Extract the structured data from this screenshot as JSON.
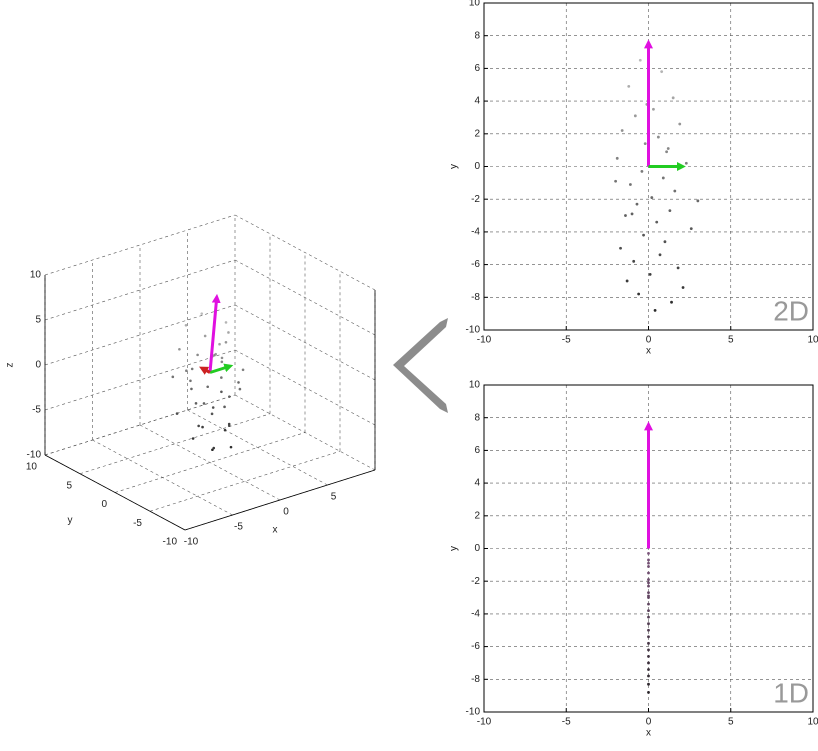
{
  "chart_data": [
    {
      "type": "scatter3d",
      "xlabel": "x",
      "ylabel": "y",
      "zlabel": "z",
      "xlim": [
        -10,
        10
      ],
      "ylim": [
        -10,
        10
      ],
      "zlim": [
        -10,
        10
      ],
      "xticks": [
        -10,
        -5,
        0,
        5
      ],
      "yticks": [
        -10,
        -5,
        0,
        5,
        10
      ],
      "zticks": [
        -10,
        -5,
        0,
        5,
        10
      ],
      "grid": true,
      "colormap": [
        "#1e1e1e",
        "#dcdcdc"
      ],
      "x": [
        -0.5,
        0.8,
        -1.2,
        1.5,
        0.3,
        -0.8,
        1.9,
        -1.6,
        0.6,
        -0.2,
        1.1,
        -1.9,
        2.3,
        -0.4,
        0.9,
        -1.1,
        1.6,
        0.2,
        -0.7,
        1.3,
        -1.4,
        0.5,
        2.6,
        -0.3,
        1.0,
        -1.7,
        0.7,
        -0.9,
        1.8,
        0.1,
        -1.3,
        2.1,
        -0.6,
        1.4,
        0.4,
        -1.0,
        1.2,
        -0.1,
        3.0,
        -2.0
      ],
      "y": [
        0.5,
        -1.2,
        1.8,
        -0.6,
        1.1,
        -1.9,
        0.3,
        2.2,
        -0.9,
        1.5,
        -0.2,
        0.8,
        -1.6,
        2.0,
        -0.4,
        1.3,
        -2.1,
        0.6,
        1.7,
        -1.0,
        0.1,
        -1.4,
        1.9,
        -0.7,
        0.9,
        2.4,
        -1.8,
        0.4,
        -0.3,
        1.2,
        -2.3,
        0.7,
        1.6,
        -1.1,
        0.2,
        -0.5,
        1.0,
        -1.5,
        0.0,
        2.6
      ],
      "z": [
        6.5,
        5.8,
        4.9,
        4.2,
        3.5,
        3.1,
        2.6,
        2.2,
        1.8,
        1.4,
        0.9,
        0.5,
        0.2,
        -0.3,
        -0.7,
        -1.1,
        -1.5,
        -1.9,
        -2.3,
        -2.7,
        -3.0,
        -3.4,
        -3.8,
        -4.2,
        -4.6,
        -5.0,
        -5.4,
        -5.8,
        -6.2,
        -6.6,
        -7.0,
        -7.4,
        -7.8,
        -8.3,
        -8.8,
        -2.9,
        1.1,
        3.8,
        -2.1,
        -0.9
      ],
      "arrows": [
        {
          "color": "#e010e0",
          "dx": 0.7,
          "dy": 0,
          "dz": 8
        },
        {
          "color": "#22cc22",
          "dx": 2,
          "dy": 0,
          "dz": 0
        },
        {
          "color": "#cc2222",
          "dx": 0,
          "dy": 1,
          "dz": 0
        }
      ]
    },
    {
      "type": "scatter",
      "xlabel": "x",
      "ylabel": "y",
      "annotation": "2D",
      "xlim": [
        -10,
        10
      ],
      "ylim": [
        -10,
        10
      ],
      "xticks": [
        -10,
        -5,
        0,
        5,
        10
      ],
      "yticks": [
        -10,
        -8,
        -6,
        -4,
        -2,
        0,
        2,
        4,
        6,
        8,
        10
      ],
      "grid": true,
      "colormap": [
        "#1e1e1e",
        "#dcdcdc"
      ],
      "x": [
        -0.5,
        0.8,
        -1.2,
        1.5,
        0.3,
        -0.8,
        1.9,
        -1.6,
        0.6,
        -0.2,
        1.1,
        -1.9,
        2.3,
        -0.4,
        0.9,
        -1.1,
        1.6,
        0.2,
        -0.7,
        1.3,
        -1.4,
        0.5,
        2.6,
        -0.3,
        1.0,
        -1.7,
        0.7,
        -0.9,
        1.8,
        0.1,
        -1.3,
        2.1,
        -0.6,
        1.4,
        0.4,
        -1.0,
        1.2,
        -0.1,
        3.0,
        -2.0
      ],
      "y": [
        6.5,
        5.8,
        4.9,
        4.2,
        3.5,
        3.1,
        2.6,
        2.2,
        1.8,
        1.4,
        0.9,
        0.5,
        0.2,
        -0.3,
        -0.7,
        -1.1,
        -1.5,
        -1.9,
        -2.3,
        -2.7,
        -3.0,
        -3.4,
        -3.8,
        -4.2,
        -4.6,
        -5.0,
        -5.4,
        -5.8,
        -6.2,
        -6.6,
        -7.0,
        -7.4,
        -7.8,
        -8.3,
        -8.8,
        -2.9,
        1.1,
        3.8,
        -2.1,
        -0.9
      ],
      "arrows": [
        {
          "color": "#e010e0",
          "dx": 0,
          "dy": 7.5
        },
        {
          "color": "#22cc22",
          "dx": 2,
          "dy": 0
        }
      ]
    },
    {
      "type": "scatter",
      "xlabel": "x",
      "ylabel": "y",
      "annotation": "1D",
      "xlim": [
        -10,
        10
      ],
      "ylim": [
        -10,
        10
      ],
      "xticks": [
        -10,
        -5,
        0,
        5,
        10
      ],
      "yticks": [
        -10,
        -8,
        -6,
        -4,
        -2,
        0,
        2,
        4,
        6,
        8,
        10
      ],
      "grid": true,
      "colormap": [
        "#1e1e1e",
        "#e090e0"
      ],
      "x": [
        0,
        0,
        0,
        0,
        0,
        0,
        0,
        0,
        0,
        0,
        0,
        0,
        0,
        0,
        0,
        0,
        0,
        0,
        0,
        0,
        0,
        0,
        0,
        0,
        0,
        0,
        0,
        0,
        0,
        0,
        0,
        0,
        0,
        0,
        0,
        0,
        0,
        0,
        0,
        0
      ],
      "y": [
        6.5,
        5.8,
        4.9,
        4.2,
        3.5,
        3.1,
        2.6,
        2.2,
        1.8,
        1.4,
        0.9,
        0.5,
        0.2,
        -0.3,
        -0.7,
        -1.1,
        -1.5,
        -1.9,
        -2.3,
        -2.7,
        -3.0,
        -3.4,
        -3.8,
        -4.2,
        -4.6,
        -5.0,
        -5.4,
        -5.8,
        -6.2,
        -6.6,
        -7.0,
        -7.4,
        -7.8,
        -8.3,
        -8.8,
        -2.9,
        1.1,
        3.8,
        -2.1,
        -0.9
      ],
      "arrows": [
        {
          "color": "#e010e0",
          "dx": 0,
          "dy": 7.5
        }
      ]
    }
  ]
}
